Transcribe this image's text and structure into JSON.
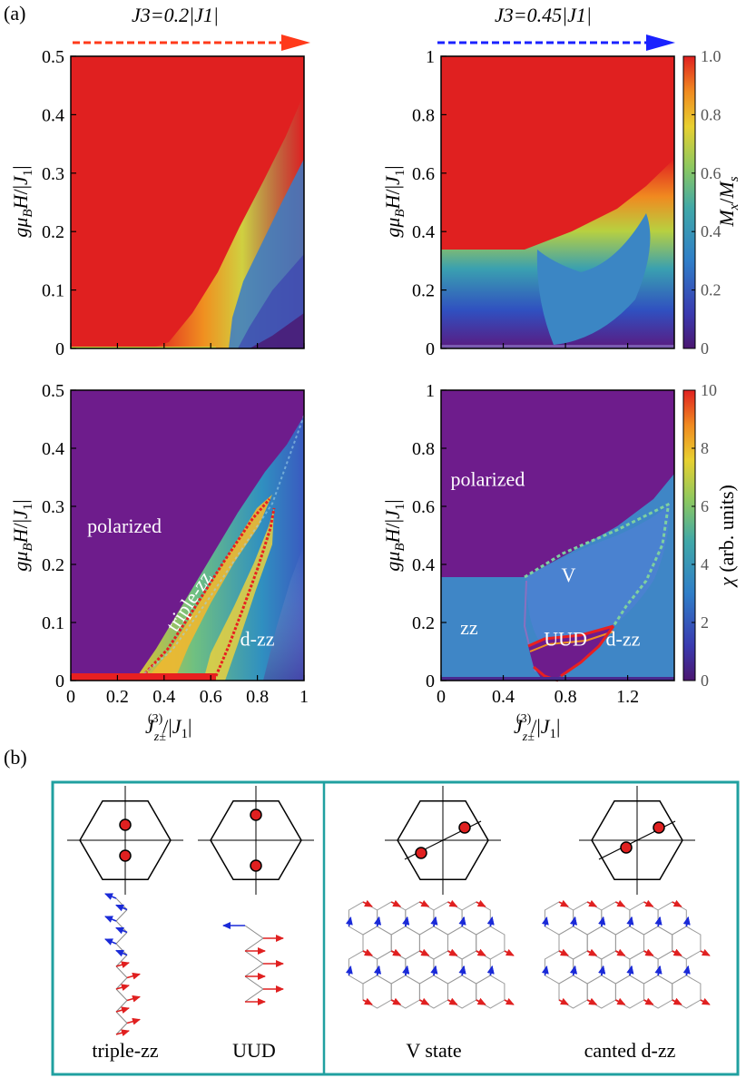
{
  "panel_a_label": "(a)",
  "panel_b_label": "(b)",
  "col_left_title": "J3=0.2|J1|",
  "col_right_title": "J3=0.45|J1|",
  "colors": {
    "arrow_left": "#ff3a1a",
    "arrow_right": "#1a22ff",
    "red_phase": "#e02020",
    "purple_phase": "#6e1c8c",
    "zz_blue": "#3f86c6",
    "frame": "#20a0a0",
    "spin_red": "#e02020",
    "spin_blue": "#1a2ad8"
  },
  "chart_data": [
    {
      "type": "heatmap",
      "title": "",
      "xlabel": "Jz±(3)/|J1|",
      "ylabel": "gμBH/|J1|",
      "xlim": [
        0,
        1
      ],
      "ylim": [
        0,
        0.5
      ],
      "xticks": [
        "0",
        "0.2",
        "0.4",
        "0.6",
        "0.8",
        "1"
      ],
      "yticks": [
        "0",
        "0.1",
        "0.2",
        "0.3",
        "0.4",
        "0.5"
      ],
      "quantity": "Mx/Ms",
      "saturation_boundary": [
        [
          0,
          0.002
        ],
        [
          0.3,
          0.005
        ],
        [
          0.5,
          0.07
        ],
        [
          0.6,
          0.14
        ],
        [
          0.7,
          0.21
        ],
        [
          0.8,
          0.28
        ],
        [
          0.9,
          0.35
        ],
        [
          1.0,
          0.44
        ]
      ],
      "regions": []
    },
    {
      "type": "heatmap",
      "title": "",
      "xlabel": "Jz±(3)/|J1|",
      "ylabel": "gμBH/|J1|",
      "xlim": [
        0,
        1.5
      ],
      "ylim": [
        0,
        1
      ],
      "xticks": [
        "0",
        "0.4",
        "0.8",
        "1.2"
      ],
      "yticks": [
        "0",
        "0.2",
        "0.4",
        "0.6",
        "0.8",
        "1"
      ],
      "quantity": "Mx/Ms",
      "colorbar": {
        "label": "Mx/Ms",
        "range": [
          0,
          1.0
        ],
        "ticks": [
          "0",
          "0.2",
          "0.4",
          "0.6",
          "0.8",
          "1.0"
        ]
      },
      "saturation_boundary": [
        [
          0,
          0.34
        ],
        [
          0.55,
          0.34
        ],
        [
          0.8,
          0.42
        ],
        [
          1.1,
          0.52
        ],
        [
          1.3,
          0.59
        ],
        [
          1.5,
          0.67
        ]
      ],
      "regions": []
    },
    {
      "type": "heatmap",
      "title": "",
      "xlabel": "Jz±(3)/|J1|",
      "ylabel": "gμBH/|J1|",
      "xlim": [
        0,
        1
      ],
      "ylim": [
        0,
        0.5
      ],
      "xticks": [
        "0",
        "0.2",
        "0.4",
        "0.6",
        "0.8",
        "1"
      ],
      "yticks": [
        "0",
        "0.1",
        "0.2",
        "0.3",
        "0.4",
        "0.5"
      ],
      "quantity": "χ (arb. units)",
      "regions": [
        {
          "label": "polarized",
          "x": 0.23,
          "y": 0.255
        },
        {
          "label": "triple-zz",
          "x": 0.53,
          "y": 0.13
        },
        {
          "label": "d-zz",
          "x": 0.8,
          "y": 0.06
        }
      ]
    },
    {
      "type": "heatmap",
      "title": "",
      "xlabel": "Jz±(3)/|J1|",
      "ylabel": "gμBH/|J1|",
      "xlim": [
        0,
        1.5
      ],
      "ylim": [
        0,
        1
      ],
      "xticks": [
        "0",
        "0.4",
        "0.8",
        "1.2"
      ],
      "yticks": [
        "0",
        "0.2",
        "0.4",
        "0.6",
        "0.8",
        "1"
      ],
      "quantity": "χ (arb. units)",
      "colorbar": {
        "label": "χ (arb. units)",
        "range": [
          0,
          10
        ],
        "ticks": [
          "0",
          "2",
          "4",
          "6",
          "8",
          "10"
        ]
      },
      "regions": [
        {
          "label": "polarized",
          "x": 0.3,
          "y": 0.67
        },
        {
          "label": "V",
          "x": 0.82,
          "y": 0.34
        },
        {
          "label": "zz",
          "x": 0.18,
          "y": 0.16
        },
        {
          "label": "UUD",
          "x": 0.8,
          "y": 0.12
        },
        {
          "label": "d-zz",
          "x": 1.17,
          "y": 0.12
        }
      ]
    }
  ],
  "states": [
    {
      "label": "triple-zz"
    },
    {
      "label": "UUD"
    },
    {
      "label": "V state"
    },
    {
      "label": "canted d-zz"
    }
  ]
}
